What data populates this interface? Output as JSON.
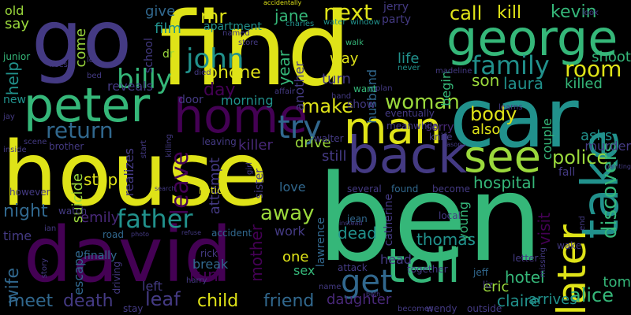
{
  "background": "#000000",
  "palette": {
    "yellow": "#dfe318",
    "lime": "#9bd93c",
    "green": "#35b779",
    "teal": "#21918c",
    "blue": "#31688e",
    "indigo": "#443a83",
    "purple": "#440154",
    "grape": "#482878"
  },
  "words": [
    {
      "text": "find",
      "color": "yellow"
    },
    {
      "text": "house",
      "color": "yellow"
    },
    {
      "text": "ben",
      "color": "green"
    },
    {
      "text": "david",
      "color": "purple"
    },
    {
      "text": "car",
      "color": "teal"
    },
    {
      "text": "go",
      "color": "indigo"
    },
    {
      "text": "george",
      "color": "green"
    },
    {
      "text": "peter",
      "color": "green"
    },
    {
      "text": "home",
      "color": "purple"
    },
    {
      "text": "back",
      "color": "indigo"
    },
    {
      "text": "man",
      "color": "yellow"
    },
    {
      "text": "tell",
      "color": "green"
    },
    {
      "text": "take",
      "color": "teal"
    },
    {
      "text": "see",
      "color": "lime"
    },
    {
      "text": "later",
      "color": "yellow"
    },
    {
      "text": "try",
      "color": "blue"
    },
    {
      "text": "get",
      "color": "blue"
    },
    {
      "text": "family",
      "color": "teal"
    },
    {
      "text": "room",
      "color": "yellow"
    },
    {
      "text": "john",
      "color": "teal"
    },
    {
      "text": "billy",
      "color": "green"
    },
    {
      "text": "father",
      "color": "teal"
    },
    {
      "text": "return",
      "color": "blue"
    },
    {
      "text": "woman",
      "color": "lime"
    },
    {
      "text": "next",
      "color": "yellow"
    },
    {
      "text": "leave",
      "color": "purple"
    },
    {
      "text": "away",
      "color": "lime"
    },
    {
      "text": "friend",
      "color": "blue"
    },
    {
      "text": "child",
      "color": "yellow"
    },
    {
      "text": "death",
      "color": "indigo"
    },
    {
      "text": "meet",
      "color": "blue"
    },
    {
      "text": "leaf",
      "color": "indigo"
    },
    {
      "text": "alice",
      "color": "green"
    },
    {
      "text": "police",
      "color": "lime"
    },
    {
      "text": "discovers",
      "color": "green"
    },
    {
      "text": "make",
      "color": "yellow"
    },
    {
      "text": "body",
      "color": "yellow"
    },
    {
      "text": "day",
      "color": "purple"
    },
    {
      "text": "phone",
      "color": "yellow"
    },
    {
      "text": "mr",
      "color": "yellow"
    },
    {
      "text": "call",
      "color": "yellow"
    },
    {
      "text": "kill",
      "color": "yellow"
    },
    {
      "text": "kevin",
      "color": "green"
    },
    {
      "text": "jane",
      "color": "green"
    },
    {
      "text": "year",
      "color": "green"
    },
    {
      "text": "night",
      "color": "blue"
    },
    {
      "text": "emily",
      "color": "grape"
    },
    {
      "text": "wife",
      "color": "blue"
    },
    {
      "text": "mother",
      "color": "purple"
    },
    {
      "text": "thomas",
      "color": "teal"
    },
    {
      "text": "dead",
      "color": "teal"
    },
    {
      "text": "daughter",
      "color": "grape"
    },
    {
      "text": "claire",
      "color": "teal"
    },
    {
      "text": "hotel",
      "color": "green"
    },
    {
      "text": "visit",
      "color": "purple"
    },
    {
      "text": "hospital",
      "color": "green"
    },
    {
      "text": "laura",
      "color": "teal"
    },
    {
      "text": "son",
      "color": "lime"
    },
    {
      "text": "killed",
      "color": "green"
    },
    {
      "text": "shoot",
      "color": "green"
    },
    {
      "text": "asks",
      "color": "teal"
    },
    {
      "text": "murder",
      "color": "indigo"
    },
    {
      "text": "run",
      "color": "purple"
    },
    {
      "text": "eric",
      "color": "lime"
    },
    {
      "text": "tom",
      "color": "green"
    },
    {
      "text": "arrives",
      "color": "teal"
    },
    {
      "text": "killer",
      "color": "grape"
    },
    {
      "text": "drive",
      "color": "lime"
    },
    {
      "text": "still",
      "color": "indigo"
    },
    {
      "text": "stop",
      "color": "yellow"
    },
    {
      "text": "suicide",
      "color": "lime"
    },
    {
      "text": "attempt",
      "color": "indigo"
    },
    {
      "text": "help",
      "color": "teal"
    },
    {
      "text": "give",
      "color": "blue"
    },
    {
      "text": "film",
      "color": "teal"
    },
    {
      "text": "say",
      "color": "lime"
    },
    {
      "text": "come",
      "color": "lime"
    },
    {
      "text": "apartment",
      "color": "teal"
    },
    {
      "text": "way",
      "color": "yellow"
    },
    {
      "text": "turn",
      "color": "indigo"
    },
    {
      "text": "husband",
      "color": "blue"
    },
    {
      "text": "life",
      "color": "teal"
    },
    {
      "text": "party",
      "color": "indigo"
    },
    {
      "text": "jerry",
      "color": "indigo"
    },
    {
      "text": "also",
      "color": "yellow"
    },
    {
      "text": "love",
      "color": "blue"
    },
    {
      "text": "work",
      "color": "indigo"
    },
    {
      "text": "one",
      "color": "yellow"
    },
    {
      "text": "sex",
      "color": "green"
    },
    {
      "text": "head",
      "color": "indigo"
    },
    {
      "text": "break",
      "color": "blue"
    },
    {
      "text": "left",
      "color": "indigo"
    },
    {
      "text": "time",
      "color": "indigo"
    },
    {
      "text": "old",
      "color": "lime"
    },
    {
      "text": "new",
      "color": "teal"
    },
    {
      "text": "morning",
      "color": "teal"
    },
    {
      "text": "door",
      "color": "indigo"
    },
    {
      "text": "show",
      "color": "indigo"
    },
    {
      "text": "begin",
      "color": "green"
    },
    {
      "text": "another",
      "color": "indigo"
    },
    {
      "text": "school",
      "color": "indigo"
    },
    {
      "text": "dr",
      "color": "lime"
    },
    {
      "text": "reveals",
      "color": "indigo"
    },
    {
      "text": "sister",
      "color": "indigo"
    },
    {
      "text": "catherine",
      "color": "indigo"
    },
    {
      "text": "couple",
      "color": "green"
    },
    {
      "text": "fall",
      "color": "indigo"
    },
    {
      "text": "young",
      "color": "green"
    },
    {
      "text": "sorry",
      "color": "grape"
    },
    {
      "text": "escape",
      "color": "blue"
    },
    {
      "text": "finally",
      "color": "blue"
    },
    {
      "text": "realizes",
      "color": "indigo"
    },
    {
      "text": "notice",
      "color": "yellow"
    },
    {
      "text": "accident",
      "color": "blue"
    },
    {
      "text": "rick",
      "color": "indigo"
    },
    {
      "text": "walter",
      "color": "indigo"
    },
    {
      "text": "lawrence",
      "color": "blue"
    },
    {
      "text": "jean",
      "color": "blue"
    },
    {
      "text": "local",
      "color": "indigo"
    },
    {
      "text": "several",
      "color": "indigo"
    },
    {
      "text": "found",
      "color": "blue"
    },
    {
      "text": "become",
      "color": "indigo"
    },
    {
      "text": "wake",
      "color": "indigo"
    },
    {
      "text": "letter",
      "color": "indigo"
    },
    {
      "text": "together",
      "color": "indigo"
    },
    {
      "text": "outside",
      "color": "indigo"
    },
    {
      "text": "attack",
      "color": "indigo"
    },
    {
      "text": "jeff",
      "color": "blue"
    },
    {
      "text": "liz",
      "color": "indigo"
    },
    {
      "text": "eventually",
      "color": "indigo"
    },
    {
      "text": "meanwhile",
      "color": "indigo"
    },
    {
      "text": "knife",
      "color": "indigo"
    },
    {
      "text": "however",
      "color": "indigo"
    },
    {
      "text": "watch",
      "color": "indigo"
    },
    {
      "text": "brother",
      "color": "indigo"
    },
    {
      "text": "leaving",
      "color": "indigo"
    },
    {
      "text": "ian",
      "color": "indigo"
    },
    {
      "text": "story",
      "color": "indigo"
    },
    {
      "text": "road",
      "color": "blue"
    },
    {
      "text": "driving",
      "color": "indigo"
    },
    {
      "text": "harry",
      "color": "indigo"
    },
    {
      "text": "stay",
      "color": "indigo"
    },
    {
      "text": "name",
      "color": "indigo"
    },
    {
      "text": "becomes",
      "color": "indigo"
    },
    {
      "text": "wendy",
      "color": "indigo"
    },
    {
      "text": "junior",
      "color": "green"
    },
    {
      "text": "flees",
      "color": "indigo"
    },
    {
      "text": "leo",
      "color": "indigo"
    },
    {
      "text": "bed",
      "color": "indigo"
    },
    {
      "text": "died",
      "color": "indigo"
    },
    {
      "text": "hand",
      "color": "indigo"
    },
    {
      "text": "walk",
      "color": "green"
    },
    {
      "text": "want",
      "color": "green"
    },
    {
      "text": "water",
      "color": "teal"
    },
    {
      "text": "window",
      "color": "teal"
    },
    {
      "text": "charles",
      "color": "teal"
    },
    {
      "text": "never",
      "color": "teal"
    },
    {
      "text": "madeline",
      "color": "indigo"
    },
    {
      "text": "learns",
      "color": "indigo"
    },
    {
      "text": "plan",
      "color": "indigo"
    },
    {
      "text": "look",
      "color": "indigo"
    },
    {
      "text": "accidentally",
      "color": "yellow"
    },
    {
      "text": "named",
      "color": "indigo"
    },
    {
      "text": "store",
      "color": "indigo"
    },
    {
      "text": "affair",
      "color": "indigo"
    },
    {
      "text": "jay",
      "color": "indigo"
    },
    {
      "text": "scene",
      "color": "indigo"
    },
    {
      "text": "inside",
      "color": "indigo"
    },
    {
      "text": "start",
      "color": "indigo"
    },
    {
      "text": "killing",
      "color": "indigo"
    },
    {
      "text": "photo",
      "color": "indigo"
    },
    {
      "text": "refuse",
      "color": "indigo"
    },
    {
      "text": "girl",
      "color": "indigo"
    },
    {
      "text": "search",
      "color": "indigo"
    },
    {
      "text": "painting",
      "color": "indigo"
    },
    {
      "text": "missing",
      "color": "indigo"
    },
    {
      "text": "end",
      "color": "indigo"
    },
    {
      "text": "beth",
      "color": "indigo"
    },
    {
      "text": "instead",
      "color": "indigo"
    },
    {
      "text": "jason",
      "color": "indigo"
    }
  ]
}
